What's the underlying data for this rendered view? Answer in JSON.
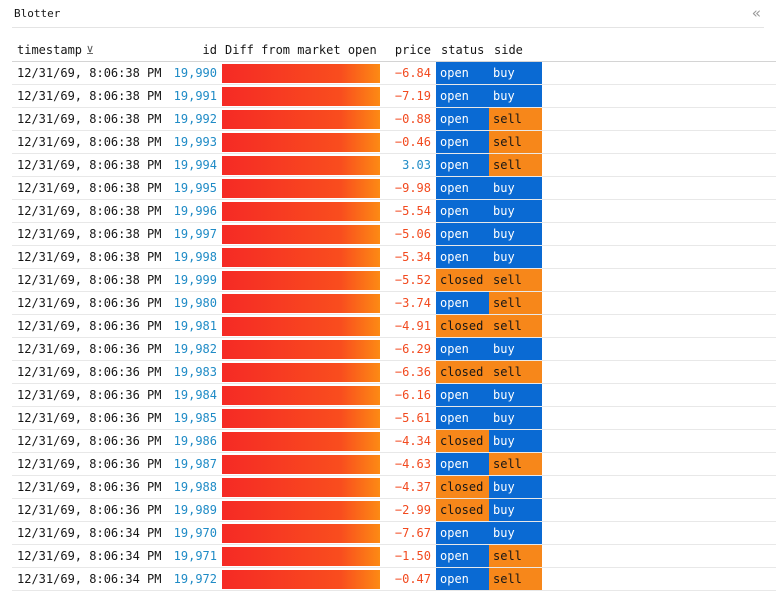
{
  "panel": {
    "title": "Blotter",
    "collapse_icon": "double-chevron-left-icon"
  },
  "columns": {
    "timestamp": "timestamp",
    "id": "id",
    "diff": "Diff from market open",
    "price": "price",
    "status": "status",
    "side": "side",
    "sort_icon": "sort-descending-icon"
  },
  "colors": {
    "blue": "#0a6ad3",
    "orange": "#f7871a",
    "negative": "#f24a1f",
    "positive": "#1f8bc6"
  },
  "rows": [
    {
      "timestamp": "12/31/69, 8:06:38 PM",
      "id": "19,990",
      "price": "-6.84",
      "status": "open",
      "side": "buy"
    },
    {
      "timestamp": "12/31/69, 8:06:38 PM",
      "id": "19,991",
      "price": "-7.19",
      "status": "open",
      "side": "buy"
    },
    {
      "timestamp": "12/31/69, 8:06:38 PM",
      "id": "19,992",
      "price": "-0.88",
      "status": "open",
      "side": "sell"
    },
    {
      "timestamp": "12/31/69, 8:06:38 PM",
      "id": "19,993",
      "price": "-0.46",
      "status": "open",
      "side": "sell"
    },
    {
      "timestamp": "12/31/69, 8:06:38 PM",
      "id": "19,994",
      "price": "3.03",
      "status": "open",
      "side": "sell"
    },
    {
      "timestamp": "12/31/69, 8:06:38 PM",
      "id": "19,995",
      "price": "-9.98",
      "status": "open",
      "side": "buy"
    },
    {
      "timestamp": "12/31/69, 8:06:38 PM",
      "id": "19,996",
      "price": "-5.54",
      "status": "open",
      "side": "buy"
    },
    {
      "timestamp": "12/31/69, 8:06:38 PM",
      "id": "19,997",
      "price": "-5.06",
      "status": "open",
      "side": "buy"
    },
    {
      "timestamp": "12/31/69, 8:06:38 PM",
      "id": "19,998",
      "price": "-5.34",
      "status": "open",
      "side": "buy"
    },
    {
      "timestamp": "12/31/69, 8:06:38 PM",
      "id": "19,999",
      "price": "-5.52",
      "status": "closed",
      "side": "sell"
    },
    {
      "timestamp": "12/31/69, 8:06:36 PM",
      "id": "19,980",
      "price": "-3.74",
      "status": "open",
      "side": "sell"
    },
    {
      "timestamp": "12/31/69, 8:06:36 PM",
      "id": "19,981",
      "price": "-4.91",
      "status": "closed",
      "side": "sell"
    },
    {
      "timestamp": "12/31/69, 8:06:36 PM",
      "id": "19,982",
      "price": "-6.29",
      "status": "open",
      "side": "buy"
    },
    {
      "timestamp": "12/31/69, 8:06:36 PM",
      "id": "19,983",
      "price": "-6.36",
      "status": "closed",
      "side": "sell"
    },
    {
      "timestamp": "12/31/69, 8:06:36 PM",
      "id": "19,984",
      "price": "-6.16",
      "status": "open",
      "side": "buy"
    },
    {
      "timestamp": "12/31/69, 8:06:36 PM",
      "id": "19,985",
      "price": "-5.61",
      "status": "open",
      "side": "buy"
    },
    {
      "timestamp": "12/31/69, 8:06:36 PM",
      "id": "19,986",
      "price": "-4.34",
      "status": "closed",
      "side": "buy"
    },
    {
      "timestamp": "12/31/69, 8:06:36 PM",
      "id": "19,987",
      "price": "-4.63",
      "status": "open",
      "side": "sell"
    },
    {
      "timestamp": "12/31/69, 8:06:36 PM",
      "id": "19,988",
      "price": "-4.37",
      "status": "closed",
      "side": "buy"
    },
    {
      "timestamp": "12/31/69, 8:06:36 PM",
      "id": "19,989",
      "price": "-2.99",
      "status": "closed",
      "side": "buy"
    },
    {
      "timestamp": "12/31/69, 8:06:34 PM",
      "id": "19,970",
      "price": "-7.67",
      "status": "open",
      "side": "buy"
    },
    {
      "timestamp": "12/31/69, 8:06:34 PM",
      "id": "19,971",
      "price": "-1.50",
      "status": "open",
      "side": "sell"
    },
    {
      "timestamp": "12/31/69, 8:06:34 PM",
      "id": "19,972",
      "price": "-0.47",
      "status": "open",
      "side": "sell"
    }
  ]
}
